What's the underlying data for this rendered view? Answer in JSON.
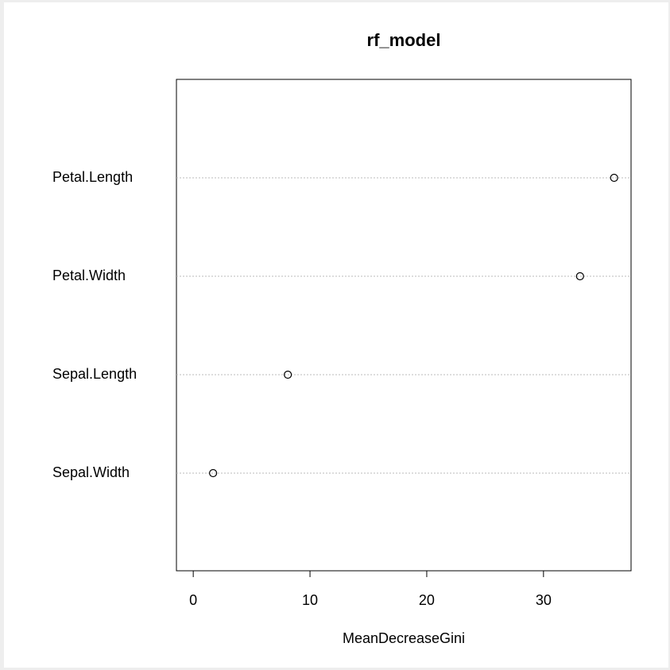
{
  "chart_data": {
    "type": "dot",
    "title": "rf_model",
    "x_label": "MeanDecreaseGini",
    "categories": [
      "Petal.Length",
      "Petal.Width",
      "Sepal.Length",
      "Sepal.Width"
    ],
    "values": [
      36.05,
      33.13,
      8.1,
      1.7
    ],
    "color": "#000000",
    "xlim": [
      -1.44,
      37.5
    ],
    "xticks": [
      0,
      10,
      20,
      30
    ],
    "grid": true
  }
}
